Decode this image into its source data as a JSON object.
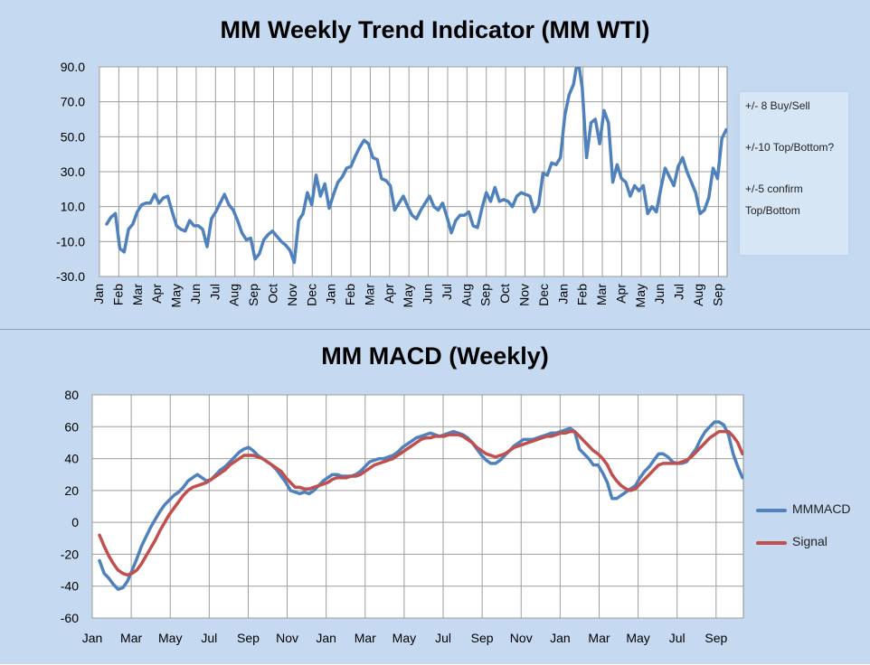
{
  "colors": {
    "panel_bg": "#c5d9f1",
    "plot_bg": "#ffffff",
    "grid": "#9d9d9d",
    "series_blue": "#4f81bd",
    "series_red": "#c0504d",
    "text": "#000000"
  },
  "wti": {
    "title": "MM Weekly Trend Indicator (MM WTI)",
    "notes": [
      "+/- 8 Buy/Sell",
      "+/-10 Top/Bottom?",
      "+/-5 confirm",
      "Top/Bottom"
    ]
  },
  "macd": {
    "title": "MM MACD (Weekly)",
    "legend": [
      {
        "label": "MMMACD",
        "color": "#4f81bd"
      },
      {
        "label": "Signal",
        "color": "#c0504d"
      }
    ]
  },
  "chart_data": [
    {
      "type": "line",
      "title": "MM Weekly Trend Indicator (MM WTI)",
      "ylim": [
        -30,
        90
      ],
      "yticks": [
        "90.0",
        "70.0",
        "50.0",
        "30.0",
        "10.0",
        "-10.0",
        "-30.0"
      ],
      "ytick_values": [
        90,
        70,
        50,
        30,
        10,
        -10,
        -30
      ],
      "xticks": [
        "Jan",
        "Feb",
        "Mar",
        "Apr",
        "May",
        "Jun",
        "Jul",
        "Aug",
        "Sep",
        "Oct",
        "Nov",
        "Dec",
        "Jan",
        "Feb",
        "Mar",
        "Apr",
        "May",
        "Jun",
        "Jul",
        "Aug",
        "Sep",
        "Oct",
        "Nov",
        "Dec",
        "Jan",
        "Feb",
        "Mar",
        "Apr",
        "May",
        "Jun",
        "Jul",
        "Aug",
        "Sep"
      ],
      "grid": true,
      "series": [
        {
          "values": [
            0,
            4,
            6,
            -14,
            -16,
            -3,
            0,
            7,
            11,
            12,
            12,
            17,
            12,
            15,
            16,
            7,
            -1,
            -3,
            -4,
            2,
            -1,
            -1,
            -3,
            -13,
            3,
            7,
            12,
            17,
            11,
            8,
            2,
            -5,
            -9,
            -8,
            -20,
            -17,
            -9,
            -6,
            -4,
            -7,
            -10,
            -12,
            -15,
            -22,
            2,
            6,
            18,
            11,
            28,
            16,
            23,
            9,
            17,
            24,
            27,
            32,
            33,
            39,
            44,
            48,
            46,
            38,
            37,
            26,
            25,
            22,
            8,
            12,
            16,
            10,
            5,
            3,
            8,
            12,
            16,
            10,
            8,
            12,
            4,
            -5,
            2,
            5,
            5,
            7,
            -1,
            -2,
            9,
            18,
            13,
            21,
            13,
            14,
            13,
            10,
            16,
            18,
            17,
            16,
            7,
            11,
            29,
            28,
            35,
            34,
            38,
            62,
            74,
            80,
            95,
            78,
            38,
            58,
            60,
            46,
            65,
            58,
            24,
            34,
            26,
            24,
            16,
            22,
            19,
            22,
            6,
            10,
            7,
            20,
            32,
            27,
            22,
            33,
            38,
            30,
            24,
            18,
            6,
            8,
            15,
            32,
            26,
            49,
            54
          ]
        }
      ]
    },
    {
      "type": "line",
      "title": "MM MACD (Weekly)",
      "ylim": [
        -60,
        80
      ],
      "yticks": [
        "80",
        "60",
        "40",
        "20",
        "0",
        "-20",
        "-40",
        "-60"
      ],
      "ytick_values": [
        80,
        60,
        40,
        20,
        0,
        -20,
        -40,
        -60
      ],
      "xticks": [
        "Jan",
        "Mar",
        "May",
        "Jul",
        "Sep",
        "Nov",
        "Jan",
        "Mar",
        "May",
        "Jul",
        "Sep",
        "Nov",
        "Jan",
        "Mar",
        "May",
        "Jul",
        "Sep"
      ],
      "grid": true,
      "legend_position": "right",
      "series": [
        {
          "name": "MMMACD",
          "values": [
            -24,
            -32,
            -35,
            -39,
            -42,
            -41,
            -37,
            -30,
            -23,
            -15,
            -9,
            -3,
            2,
            7,
            11,
            14,
            17,
            19,
            22,
            26,
            28,
            30,
            28,
            26,
            27,
            30,
            33,
            35,
            38,
            41,
            44,
            46,
            47,
            45,
            42,
            40,
            38,
            36,
            33,
            29,
            25,
            20,
            19,
            18,
            19,
            18,
            20,
            23,
            26,
            28,
            30,
            30,
            29,
            29,
            29,
            30,
            32,
            35,
            38,
            39,
            40,
            40,
            41,
            42,
            44,
            47,
            49,
            51,
            53,
            54,
            55,
            56,
            55,
            54,
            55,
            56,
            57,
            56,
            55,
            53,
            50,
            46,
            42,
            39,
            37,
            37,
            39,
            42,
            45,
            48,
            50,
            52,
            52,
            52,
            53,
            54,
            55,
            56,
            56,
            57,
            58,
            59,
            57,
            46,
            43,
            40,
            36,
            36,
            31,
            25,
            15,
            15,
            17,
            19,
            21,
            23,
            28,
            32,
            35,
            39,
            43,
            43,
            41,
            38,
            37,
            37,
            38,
            42,
            46,
            52,
            57,
            60,
            63,
            63,
            61,
            55,
            43,
            35,
            28
          ]
        },
        {
          "name": "Signal",
          "values": [
            -8,
            -15,
            -21,
            -26,
            -30,
            -32,
            -33,
            -32,
            -30,
            -26,
            -21,
            -16,
            -11,
            -5,
            0,
            5,
            9,
            13,
            17,
            20,
            22,
            23,
            24,
            25,
            27,
            29,
            31,
            33,
            36,
            38,
            40,
            42,
            42,
            42,
            41,
            40,
            38,
            36,
            34,
            32,
            28,
            25,
            22,
            22,
            21,
            21,
            22,
            23,
            24,
            25,
            27,
            28,
            28,
            28,
            29,
            29,
            30,
            32,
            34,
            36,
            37,
            38,
            39,
            40,
            42,
            44,
            46,
            48,
            50,
            52,
            53,
            53,
            54,
            54,
            54,
            55,
            55,
            55,
            54,
            52,
            50,
            47,
            45,
            43,
            42,
            41,
            42,
            43,
            45,
            47,
            48,
            49,
            50,
            51,
            52,
            53,
            54,
            54,
            55,
            56,
            56,
            57,
            57,
            54,
            51,
            48,
            45,
            43,
            40,
            36,
            30,
            26,
            23,
            21,
            20,
            21,
            24,
            27,
            30,
            33,
            36,
            37,
            37,
            37,
            37,
            38,
            39,
            41,
            44,
            47,
            50,
            53,
            55,
            57,
            57,
            57,
            54,
            50,
            43
          ]
        }
      ]
    }
  ]
}
